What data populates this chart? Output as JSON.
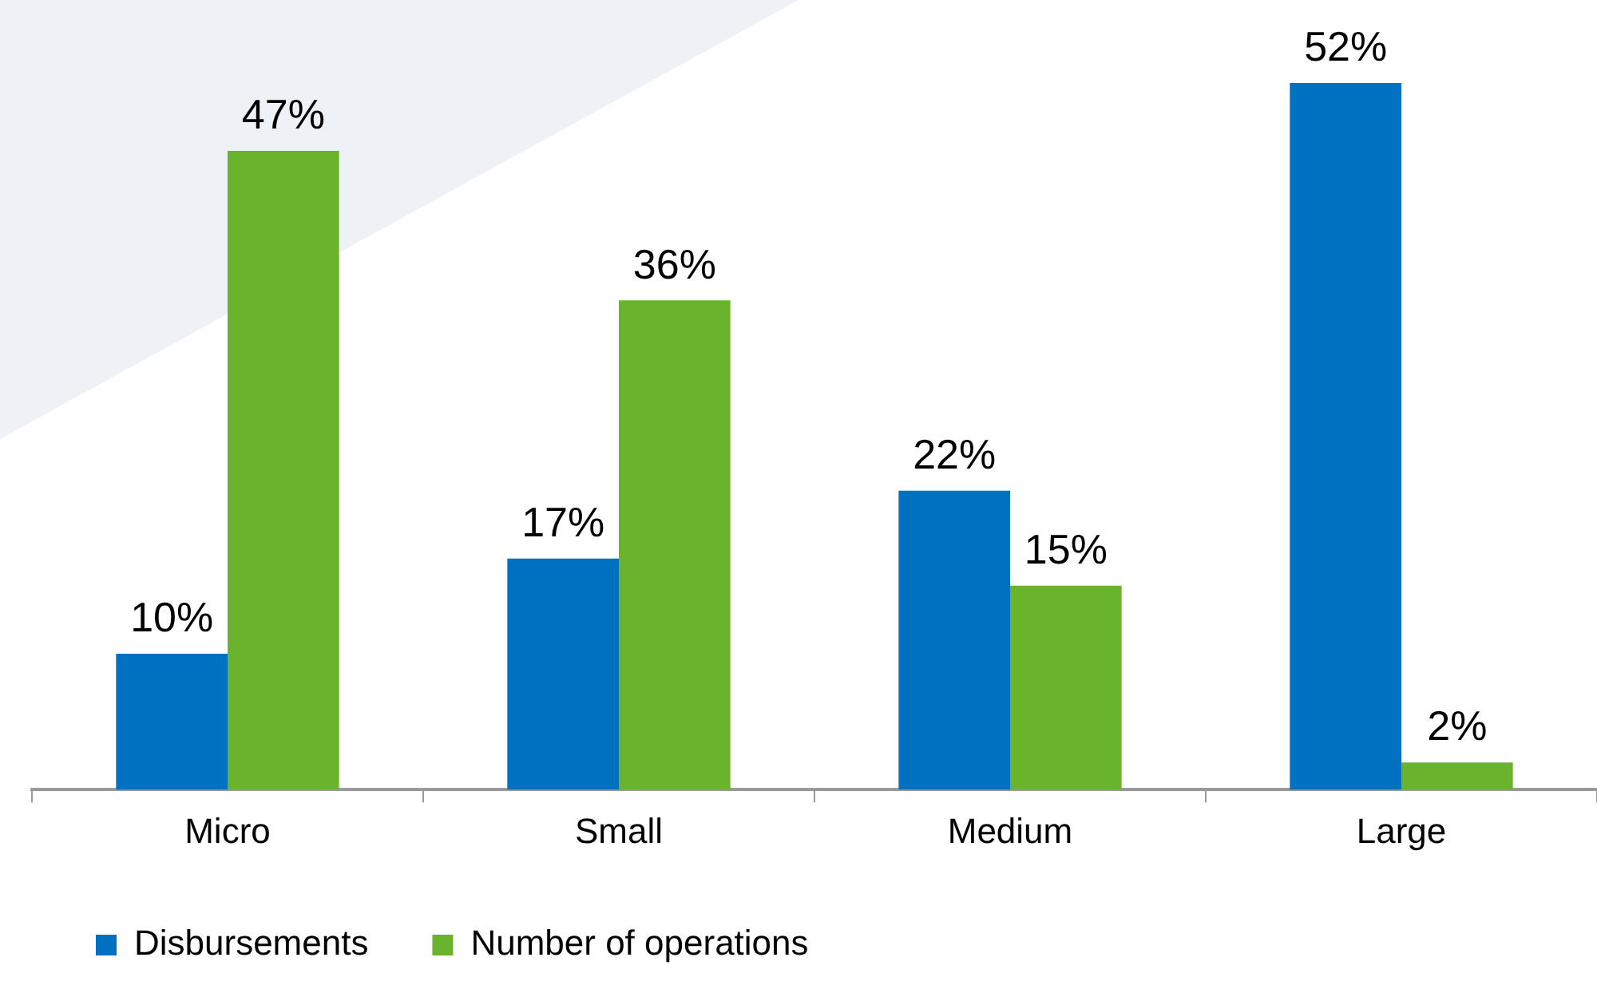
{
  "chart_data": {
    "type": "bar",
    "categories": [
      "Micro",
      "Small",
      "Medium",
      "Large"
    ],
    "series": [
      {
        "name": "Disbursements",
        "color": "#0070c0",
        "values": [
          10,
          17,
          22,
          52
        ],
        "value_labels": [
          "10%",
          "17%",
          "22%",
          "52%"
        ]
      },
      {
        "name": "Number of operations",
        "color": "#6ab42d",
        "values": [
          47,
          36,
          15,
          2
        ],
        "value_labels": [
          "47%",
          "36%",
          "15%",
          "2%"
        ]
      }
    ],
    "legend": "bottom left",
    "grid": false
  }
}
